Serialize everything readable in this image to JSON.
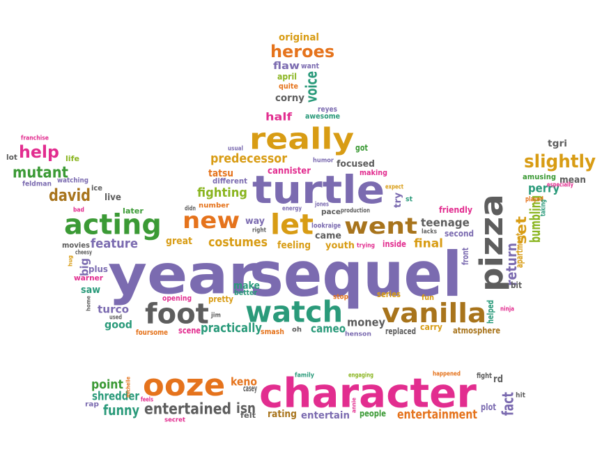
{
  "palette": {
    "purple": "#7b6bb0",
    "green": "#3b9a35",
    "orange": "#e5731c",
    "pink": "#e22d8f",
    "gold": "#d89c14",
    "brown": "#a8741c",
    "teal": "#2a9a7a",
    "gray": "#5d5d5d",
    "lime": "#8ab520"
  },
  "words": [
    {
      "text": "year",
      "color": "purple"
    },
    {
      "text": "sequel",
      "color": "purple"
    },
    {
      "text": "character",
      "color": "pink"
    },
    {
      "text": "turtle",
      "color": "purple"
    },
    {
      "text": "pizza",
      "color": "gray"
    },
    {
      "text": "watch",
      "color": "teal"
    },
    {
      "text": "really",
      "color": "gold"
    },
    {
      "text": "ooze",
      "color": "orange"
    },
    {
      "text": "foot",
      "color": "gray"
    },
    {
      "text": "vanilla",
      "color": "brown"
    },
    {
      "text": "acting",
      "color": "green"
    },
    {
      "text": "went",
      "color": "brown"
    },
    {
      "text": "new",
      "color": "orange"
    },
    {
      "text": "let",
      "color": "gold"
    },
    {
      "text": "heroes",
      "color": "orange"
    },
    {
      "text": "slightly",
      "color": "gold"
    },
    {
      "text": "help",
      "color": "pink"
    },
    {
      "text": "mutant",
      "color": "green"
    },
    {
      "text": "david",
      "color": "brown"
    },
    {
      "text": "entertained",
      "color": "gray"
    },
    {
      "text": "voice",
      "color": "teal"
    },
    {
      "text": "fighting",
      "color": "lime"
    },
    {
      "text": "predecessor",
      "color": "gold"
    },
    {
      "text": "costumes",
      "color": "gold"
    },
    {
      "text": "feature",
      "color": "purple"
    },
    {
      "text": "teenage",
      "color": "gray"
    },
    {
      "text": "final",
      "color": "gold"
    },
    {
      "text": "return",
      "color": "purple"
    },
    {
      "text": "perry",
      "color": "teal"
    },
    {
      "text": "practically",
      "color": "teal"
    },
    {
      "text": "money",
      "color": "gray"
    },
    {
      "text": "point",
      "color": "green"
    },
    {
      "text": "shredder",
      "color": "teal"
    },
    {
      "text": "funny",
      "color": "teal"
    },
    {
      "text": "isn",
      "color": "gray"
    },
    {
      "text": "entertainment",
      "color": "orange"
    },
    {
      "text": "fact",
      "color": "purple"
    },
    {
      "text": "keno",
      "color": "orange"
    },
    {
      "text": "casey",
      "color": "gray"
    },
    {
      "text": "rating",
      "color": "brown"
    },
    {
      "text": "entertain",
      "color": "purple"
    },
    {
      "text": "cameo",
      "color": "teal"
    },
    {
      "text": "turco",
      "color": "purple"
    },
    {
      "text": "good",
      "color": "teal"
    },
    {
      "text": "saw",
      "color": "teal"
    },
    {
      "text": "big",
      "color": "purple"
    },
    {
      "text": "plus",
      "color": "purple"
    },
    {
      "text": "warner",
      "color": "pink"
    },
    {
      "text": "movies",
      "color": "gray"
    },
    {
      "text": "great",
      "color": "gold"
    },
    {
      "text": "make",
      "color": "teal"
    },
    {
      "text": "better",
      "color": "teal"
    },
    {
      "text": "pretty",
      "color": "gold"
    },
    {
      "text": "scene",
      "color": "pink"
    },
    {
      "text": "smash",
      "color": "orange"
    },
    {
      "text": "opening",
      "color": "pink"
    },
    {
      "text": "foursome",
      "color": "orange"
    },
    {
      "text": "tatsu",
      "color": "orange"
    },
    {
      "text": "cannister",
      "color": "pink"
    },
    {
      "text": "different",
      "color": "purple"
    },
    {
      "text": "focused",
      "color": "gray"
    },
    {
      "text": "making",
      "color": "pink"
    },
    {
      "text": "way",
      "color": "purple"
    },
    {
      "text": "feeling",
      "color": "gold"
    },
    {
      "text": "came",
      "color": "gray"
    },
    {
      "text": "youth",
      "color": "gold"
    },
    {
      "text": "inside",
      "color": "pink"
    },
    {
      "text": "friendly",
      "color": "pink"
    },
    {
      "text": "second",
      "color": "purple"
    },
    {
      "text": "set",
      "color": "gold"
    },
    {
      "text": "bumbling",
      "color": "lime"
    },
    {
      "text": "amusing",
      "color": "green"
    },
    {
      "text": "mean",
      "color": "gray"
    },
    {
      "text": "tgri",
      "color": "gray"
    },
    {
      "text": "half",
      "color": "pink"
    },
    {
      "text": "corny",
      "color": "gray"
    },
    {
      "text": "flaw",
      "color": "purple"
    },
    {
      "text": "want",
      "color": "purple"
    },
    {
      "text": "april",
      "color": "lime"
    },
    {
      "text": "quite",
      "color": "orange"
    },
    {
      "text": "reyes",
      "color": "purple"
    },
    {
      "text": "awesome",
      "color": "teal"
    },
    {
      "text": "original",
      "color": "gold"
    },
    {
      "text": "got",
      "color": "green"
    },
    {
      "text": "live",
      "color": "gray"
    },
    {
      "text": "life",
      "color": "lime"
    },
    {
      "text": "watching",
      "color": "purple"
    },
    {
      "text": "feldman",
      "color": "purple"
    },
    {
      "text": "ice",
      "color": "gray"
    },
    {
      "text": "franchise",
      "color": "pink"
    },
    {
      "text": "lot",
      "color": "gray"
    },
    {
      "text": "later",
      "color": "green"
    },
    {
      "text": "number",
      "color": "orange"
    },
    {
      "text": "try",
      "color": "purple"
    },
    {
      "text": "st",
      "color": "teal"
    },
    {
      "text": "fun",
      "color": "gold"
    },
    {
      "text": "stop",
      "color": "orange"
    },
    {
      "text": "series",
      "color": "gold"
    },
    {
      "text": "carry",
      "color": "gold"
    },
    {
      "text": "replaced",
      "color": "gray"
    },
    {
      "text": "atmosphere",
      "color": "brown"
    },
    {
      "text": "helped",
      "color": "teal"
    },
    {
      "text": "bit",
      "color": "gray"
    },
    {
      "text": "apartment",
      "color": "gold"
    },
    {
      "text": "front",
      "color": "purple"
    },
    {
      "text": "lacks",
      "color": "gray"
    },
    {
      "text": "played",
      "color": "orange"
    },
    {
      "text": "especially",
      "color": "pink"
    },
    {
      "text": "taking",
      "color": "teal"
    },
    {
      "text": "expect",
      "color": "gold"
    },
    {
      "text": "pace",
      "color": "gray"
    },
    {
      "text": "production",
      "color": "gray"
    },
    {
      "text": "look",
      "color": "purple"
    },
    {
      "text": "raige",
      "color": "purple"
    },
    {
      "text": "trying",
      "color": "pink"
    },
    {
      "text": "jones",
      "color": "purple"
    },
    {
      "text": "energy",
      "color": "purple"
    },
    {
      "text": "right",
      "color": "gray"
    },
    {
      "text": "didn",
      "color": "gray"
    },
    {
      "text": "humor",
      "color": "purple"
    },
    {
      "text": "usual",
      "color": "purple"
    },
    {
      "text": "cheesy",
      "color": "gray"
    },
    {
      "text": "bad",
      "color": "pink"
    },
    {
      "text": "hug",
      "color": "gold"
    },
    {
      "text": "home",
      "color": "gray"
    },
    {
      "text": "used",
      "color": "gray"
    },
    {
      "text": "jim",
      "color": "gray"
    },
    {
      "text": "oh",
      "color": "gray"
    },
    {
      "text": "henson",
      "color": "purple"
    },
    {
      "text": "ninja",
      "color": "pink"
    },
    {
      "text": "family",
      "color": "teal"
    },
    {
      "text": "engaging",
      "color": "lime"
    },
    {
      "text": "happened",
      "color": "orange"
    },
    {
      "text": "fight",
      "color": "gray"
    },
    {
      "text": "rd",
      "color": "gray"
    },
    {
      "text": "hit",
      "color": "gray"
    },
    {
      "text": "plot",
      "color": "purple"
    },
    {
      "text": "people",
      "color": "green"
    },
    {
      "text": "felt",
      "color": "gray"
    },
    {
      "text": "secret",
      "color": "pink"
    },
    {
      "text": "feels",
      "color": "pink"
    },
    {
      "text": "rap",
      "color": "purple"
    },
    {
      "text": "michelle",
      "color": "orange"
    },
    {
      "text": "annie",
      "color": "pink"
    }
  ]
}
